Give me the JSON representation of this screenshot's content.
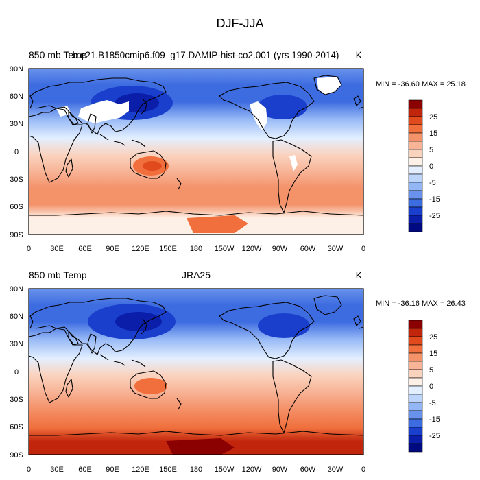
{
  "main_title": "DJF-JJA",
  "panels": [
    {
      "left_string": "850 mb Temp",
      "center_string": "b.e21.B1850cmip6.f09_g17.DAMIP-hist-co2.001 (yrs 1990-2014)",
      "right_string": "K",
      "minmax": "MIN = -36.60 MAX =  25.18"
    },
    {
      "left_string": "850 mb Temp",
      "center_string": "JRA25",
      "right_string": "K",
      "minmax": "MIN = -36.16 MAX =  26.43"
    }
  ],
  "lat_ticks": [
    "90N",
    "60N",
    "30N",
    "0",
    "30S",
    "60S",
    "90S"
  ],
  "lon_ticks": [
    "0",
    "30E",
    "60E",
    "90E",
    "120E",
    "150E",
    "180",
    "150W",
    "120W",
    "90W",
    "60W",
    "30W",
    "0"
  ],
  "colorbar": {
    "labels": [
      "25",
      "15",
      "5",
      "0",
      "-5",
      "-15",
      "-25"
    ],
    "colors": [
      "#8b0000",
      "#c1260c",
      "#e04a1c",
      "#f06f3c",
      "#f4926a",
      "#f7b497",
      "#fad3bf",
      "#fdf0e6",
      "#e3efff",
      "#bdd5fb",
      "#93b6f5",
      "#6892ec",
      "#3d6ce0",
      "#1a3fcc",
      "#0a1eaa",
      "#000a80"
    ]
  }
}
